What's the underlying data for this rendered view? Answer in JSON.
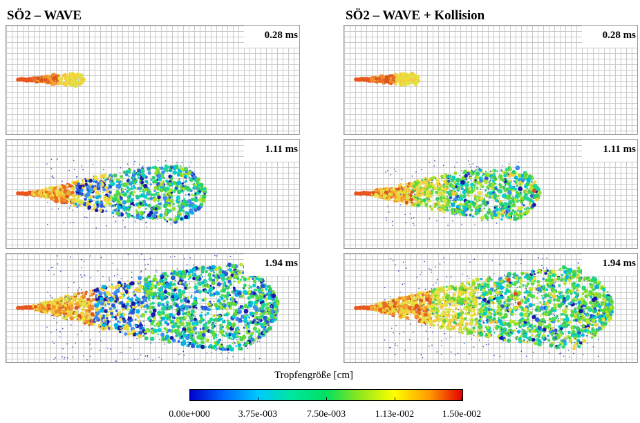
{
  "columns": [
    {
      "title": "SÖ2 – WAVE",
      "left_profile": "wave"
    },
    {
      "title": "SÖ2 – WAVE + Kollision",
      "left_profile": "collision"
    }
  ],
  "time_labels": [
    "0.28 ms",
    "1.11 ms",
    "1.94 ms"
  ],
  "legend": {
    "title": "Tropfengröße [cm]",
    "ticks": [
      "0.00e+000",
      "3.75e-003",
      "7.50e-003",
      "1.13e-002",
      "1.50e-002"
    ],
    "colors": [
      "#0000cc",
      "#0066ff",
      "#00c8ff",
      "#00e6a0",
      "#00e060",
      "#8ee61e",
      "#ffff00",
      "#ff9900",
      "#e60000"
    ]
  }
}
